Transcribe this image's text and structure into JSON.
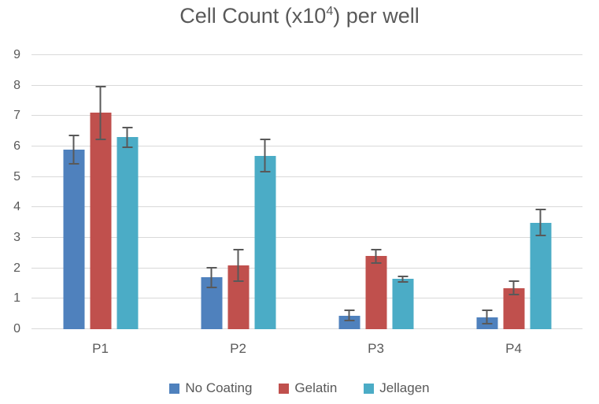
{
  "chart_data": {
    "type": "bar",
    "title": "Cell Count (x10⁴) per well",
    "title_parts": {
      "prefix": "Cell Count (x10",
      "superscript": "4",
      "suffix": ") per well"
    },
    "categories": [
      "P1",
      "P2",
      "P3",
      "P4"
    ],
    "series": [
      {
        "name": "No Coating",
        "color": "#4F81BD",
        "values": [
          5.9,
          1.7,
          0.45,
          0.4
        ],
        "error_bars": [
          0.5,
          0.35,
          0.2,
          0.25
        ]
      },
      {
        "name": "Gelatin",
        "color": "#C0504D",
        "values": [
          7.1,
          2.1,
          2.4,
          1.35
        ],
        "error_bars": [
          0.9,
          0.55,
          0.25,
          0.25
        ]
      },
      {
        "name": "Jellagen",
        "color": "#4BACC6",
        "values": [
          6.3,
          5.7,
          1.65,
          3.5
        ],
        "error_bars": [
          0.35,
          0.55,
          0.12,
          0.45
        ]
      }
    ],
    "xlabel": "",
    "ylabel": "",
    "ylim": [
      0,
      9
    ],
    "yticks": [
      0,
      1,
      2,
      3,
      4,
      5,
      6,
      7,
      8,
      9
    ],
    "grid": true,
    "legend_position": "bottom"
  },
  "style": {
    "text_color": "#595959",
    "gridline_color": "#D9D9D9",
    "error_bar_color": "#595959",
    "background_color": "#FFFFFF"
  }
}
